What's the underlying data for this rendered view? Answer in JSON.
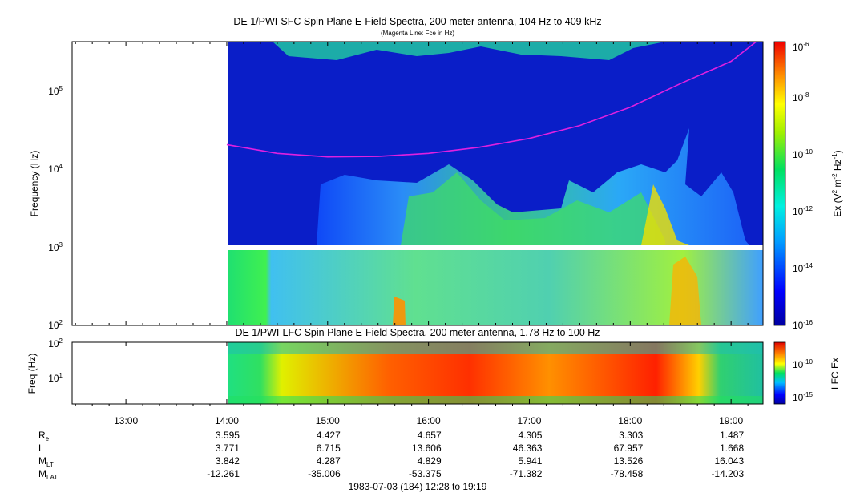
{
  "chart_data": [
    {
      "type": "heatmap",
      "title": "DE 1/PWI-SFC  Spin Plane E-Field Spectra, 200 meter antenna, 104 Hz to 409 kHz",
      "subtitle": "(Magenta Line: Fce in Hz)",
      "ylabel": "Frequency (Hz)",
      "yscale": "log",
      "ylim": [
        100,
        409000
      ],
      "yticks": [
        {
          "base": "10",
          "exp": "2"
        },
        {
          "base": "10",
          "exp": "3"
        },
        {
          "base": "10",
          "exp": "4"
        },
        {
          "base": "10",
          "exp": "5"
        }
      ],
      "data_start_time": "14:00",
      "colorbar": {
        "label_parts": [
          "Ex (V",
          "2",
          " m",
          "-2",
          " Hz",
          "-1",
          ")"
        ],
        "scale": "log",
        "range": [
          1e-16,
          1e-06
        ],
        "ticks": [
          {
            "base": "10",
            "exp": "-6"
          },
          {
            "base": "10",
            "exp": "-8"
          },
          {
            "base": "10",
            "exp": "-10"
          },
          {
            "base": "10",
            "exp": "-12"
          },
          {
            "base": "10",
            "exp": "-14"
          },
          {
            "base": "10",
            "exp": "-16"
          }
        ]
      },
      "fce_line": {
        "color": "#e020e0",
        "times": [
          "14:00",
          "14:30",
          "15:00",
          "15:30",
          "16:00",
          "16:30",
          "17:00",
          "17:30",
          "18:00",
          "18:30",
          "19:00",
          "19:15"
        ],
        "values_hz": [
          20000,
          15500,
          14000,
          14200,
          15500,
          18500,
          24000,
          35000,
          60000,
          120000,
          230000,
          409000
        ]
      }
    },
    {
      "type": "heatmap",
      "title": "DE 1/PWI-LFC  Spin Plane E-Field Spectra, 200 meter antenna, 1.78 Hz to 100 Hz",
      "ylabel": "Freq (Hz)",
      "yscale": "log",
      "ylim": [
        1.78,
        100
      ],
      "yticks": [
        {
          "base": "10",
          "exp": "1"
        },
        {
          "base": "10",
          "exp": "2"
        }
      ],
      "data_start_time": "14:00",
      "colorbar": {
        "label": "LFC Ex",
        "scale": "log",
        "ticks": [
          {
            "base": "10",
            "exp": "-10"
          },
          {
            "base": "10",
            "exp": "-15"
          }
        ]
      }
    }
  ],
  "time_axis": {
    "ticks": [
      "13:00",
      "14:00",
      "15:00",
      "16:00",
      "17:00",
      "18:00",
      "19:00"
    ],
    "range_label": "1983-07-03 (184) 12:28 to 19:19"
  },
  "ephemeris": {
    "rows": [
      {
        "name": "R",
        "sub": "e",
        "values": [
          "3.595",
          "4.427",
          "4.657",
          "4.305",
          "3.303",
          "1.487"
        ]
      },
      {
        "name": "L",
        "sub": "",
        "values": [
          "3.771",
          "6.715",
          "13.606",
          "46.363",
          "67.957",
          "1.668"
        ]
      },
      {
        "name": "M",
        "sub": "LT",
        "values": [
          "3.842",
          "4.287",
          "4.829",
          "5.941",
          "13.526",
          "16.043"
        ]
      },
      {
        "name": "M",
        "sub": "LAT",
        "values": [
          "-12.261",
          "-35.006",
          "-53.375",
          "-71.382",
          "-78.458",
          "-14.203"
        ]
      }
    ]
  }
}
